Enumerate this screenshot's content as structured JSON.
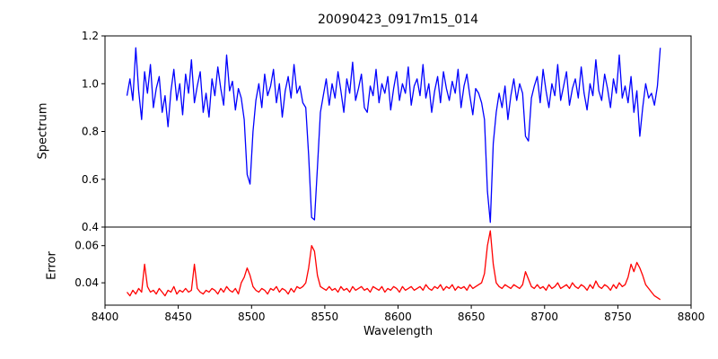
{
  "figure": {
    "title": "20090423_0917m15_014",
    "xlabel": "Wavelength",
    "ylabel_top": "Spectrum",
    "ylabel_bottom": "Error"
  },
  "chart_data": {
    "type": "line",
    "title": "20090423_0917m15_014",
    "xlabel": "Wavelength",
    "x_start": 8415,
    "x_step": 2,
    "xlim": [
      8400,
      8800
    ],
    "x_ticks": [
      8400,
      8450,
      8500,
      8550,
      8600,
      8650,
      8700,
      8750,
      8800
    ],
    "x_tick_labels": [
      "8400",
      "8450",
      "8500",
      "8550",
      "8600",
      "8650",
      "8700",
      "8750",
      "8800"
    ],
    "grid": false,
    "legend": "none",
    "panels": [
      {
        "name": "spectrum",
        "ylabel": "Spectrum",
        "color": "#0000ff",
        "ylim": [
          0.4,
          1.2
        ],
        "y_ticks": [
          0.4,
          0.6,
          0.8,
          1.0,
          1.2
        ],
        "y_tick_labels": [
          "0.4",
          "0.6",
          "0.8",
          "1.0",
          "1.2"
        ],
        "values": [
          0.95,
          1.02,
          0.93,
          1.15,
          0.97,
          0.85,
          1.05,
          0.96,
          1.08,
          0.9,
          0.98,
          1.03,
          0.88,
          0.95,
          0.82,
          0.97,
          1.06,
          0.93,
          1.0,
          0.87,
          1.04,
          0.96,
          1.1,
          0.92,
          0.99,
          1.05,
          0.88,
          0.96,
          0.86,
          1.02,
          0.95,
          1.07,
          0.98,
          0.91,
          1.12,
          0.97,
          1.01,
          0.89,
          0.98,
          0.94,
          0.85,
          0.62,
          0.58,
          0.8,
          0.93,
          1.0,
          0.9,
          1.04,
          0.95,
          0.99,
          1.06,
          0.92,
          1.0,
          0.86,
          0.97,
          1.03,
          0.94,
          1.08,
          0.96,
          0.99,
          0.92,
          0.9,
          0.7,
          0.44,
          0.43,
          0.65,
          0.88,
          0.95,
          1.02,
          0.91,
          1.0,
          0.94,
          1.05,
          0.97,
          0.88,
          1.02,
          0.96,
          1.09,
          0.93,
          0.98,
          1.04,
          0.9,
          0.88,
          0.99,
          0.95,
          1.06,
          0.92,
          1.0,
          0.96,
          1.03,
          0.89,
          0.98,
          1.05,
          0.93,
          1.0,
          0.96,
          1.07,
          0.91,
          0.99,
          1.02,
          0.95,
          1.08,
          0.94,
          1.0,
          0.88,
          0.97,
          1.03,
          0.92,
          1.05,
          0.98,
          0.93,
          1.01,
          0.96,
          1.06,
          0.9,
          0.99,
          1.04,
          0.95,
          0.87,
          0.98,
          0.96,
          0.92,
          0.85,
          0.55,
          0.42,
          0.75,
          0.88,
          0.96,
          0.9,
          0.99,
          0.85,
          0.95,
          1.02,
          0.93,
          1.0,
          0.96,
          0.78,
          0.76,
          0.94,
          0.99,
          1.03,
          0.92,
          1.06,
          0.97,
          0.9,
          1.0,
          0.95,
          1.08,
          0.93,
          0.99,
          1.05,
          0.91,
          0.98,
          1.02,
          0.94,
          1.07,
          0.96,
          0.89,
          1.0,
          0.95,
          1.1,
          0.97,
          0.93,
          1.04,
          0.98,
          0.9,
          1.02,
          0.96,
          1.12,
          0.94,
          0.99,
          0.92,
          1.03,
          0.88,
          0.97,
          0.78,
          0.9,
          1.0,
          0.94,
          0.96,
          0.91,
          0.99,
          1.15
        ]
      },
      {
        "name": "error",
        "ylabel": "Error",
        "color": "#ff0000",
        "ylim": [
          0.028,
          0.07
        ],
        "y_ticks": [
          0.04,
          0.06
        ],
        "y_tick_labels": [
          "0.04",
          "0.06"
        ],
        "values": [
          0.035,
          0.033,
          0.036,
          0.034,
          0.037,
          0.035,
          0.05,
          0.038,
          0.035,
          0.036,
          0.034,
          0.037,
          0.035,
          0.033,
          0.036,
          0.035,
          0.038,
          0.034,
          0.036,
          0.035,
          0.037,
          0.035,
          0.036,
          0.05,
          0.037,
          0.035,
          0.034,
          0.036,
          0.035,
          0.037,
          0.036,
          0.034,
          0.037,
          0.035,
          0.038,
          0.036,
          0.035,
          0.037,
          0.034,
          0.04,
          0.043,
          0.048,
          0.044,
          0.038,
          0.036,
          0.035,
          0.037,
          0.036,
          0.034,
          0.037,
          0.036,
          0.038,
          0.035,
          0.037,
          0.036,
          0.034,
          0.037,
          0.035,
          0.038,
          0.037,
          0.038,
          0.04,
          0.048,
          0.06,
          0.057,
          0.044,
          0.038,
          0.037,
          0.036,
          0.038,
          0.036,
          0.037,
          0.035,
          0.038,
          0.036,
          0.037,
          0.035,
          0.038,
          0.036,
          0.037,
          0.038,
          0.036,
          0.037,
          0.035,
          0.038,
          0.037,
          0.036,
          0.038,
          0.035,
          0.037,
          0.036,
          0.038,
          0.037,
          0.035,
          0.038,
          0.036,
          0.037,
          0.038,
          0.036,
          0.037,
          0.038,
          0.036,
          0.039,
          0.037,
          0.036,
          0.038,
          0.037,
          0.039,
          0.036,
          0.038,
          0.037,
          0.039,
          0.036,
          0.038,
          0.037,
          0.038,
          0.036,
          0.039,
          0.037,
          0.038,
          0.039,
          0.04,
          0.045,
          0.06,
          0.068,
          0.05,
          0.04,
          0.038,
          0.037,
          0.039,
          0.038,
          0.037,
          0.039,
          0.038,
          0.037,
          0.039,
          0.046,
          0.042,
          0.038,
          0.037,
          0.039,
          0.037,
          0.038,
          0.036,
          0.039,
          0.037,
          0.038,
          0.04,
          0.037,
          0.038,
          0.039,
          0.037,
          0.04,
          0.038,
          0.037,
          0.039,
          0.038,
          0.036,
          0.039,
          0.037,
          0.041,
          0.038,
          0.037,
          0.039,
          0.038,
          0.036,
          0.039,
          0.037,
          0.04,
          0.038,
          0.039,
          0.043,
          0.05,
          0.046,
          0.051,
          0.048,
          0.044,
          0.039,
          0.037,
          0.035,
          0.033,
          0.032,
          0.031
        ]
      }
    ]
  }
}
